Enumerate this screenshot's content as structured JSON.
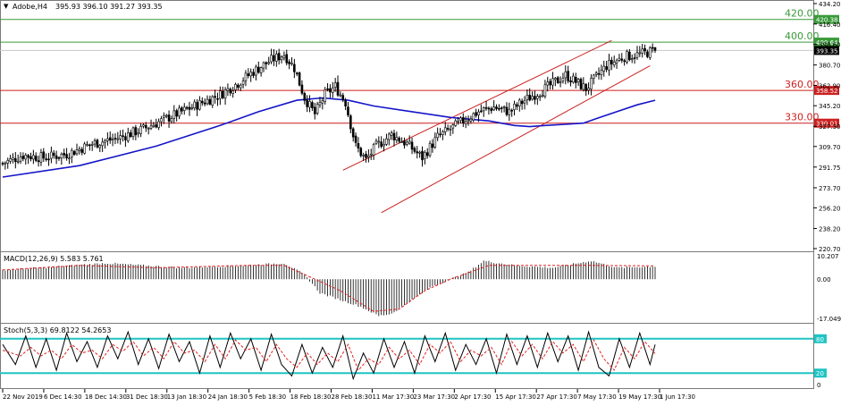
{
  "header": {
    "symbol": "Adobe,H4",
    "ohlc": "395.93 396.10 391.27 393.35"
  },
  "colors": {
    "bullish_candle": "#ffffff",
    "bearish_candle": "#000000",
    "moving_average": "#1414c8",
    "channel": "#cc1f1f",
    "resistance_level": "#3a9a3a",
    "support_level": "#cc1f1f",
    "stoch_level": "#1fc4c4",
    "signal_line": "#e02020"
  },
  "price_axis": {
    "ylim": [
      220.7,
      434.2
    ],
    "ticks": [
      "434.20",
      "416.40",
      "398.60",
      "380.70",
      "362.90",
      "345.20",
      "327.30",
      "309.70",
      "291.75",
      "273.70",
      "256.20",
      "238.20",
      "220.70"
    ],
    "current_price": "393.35"
  },
  "levels": [
    {
      "label": "420.00",
      "price": 420.38,
      "tag": "420.38",
      "color": "resistance_level"
    },
    {
      "label": "400.00",
      "price": 400.64,
      "tag": "400.64",
      "color": "resistance_level"
    },
    {
      "label": "360.00",
      "price": 358.52,
      "tag": "358.52",
      "color": "support_level"
    },
    {
      "label": "330.00",
      "price": 330.01,
      "tag": "330.01",
      "color": "support_level"
    }
  ],
  "date_labels": [
    "22 Nov 2019",
    "6 Dec 14:30",
    "18 Dec 14:30",
    "31 Dec 18:30",
    "13 Jan 18:30",
    "24 Jan 18:30",
    "5 Feb 18:30",
    "18 Feb 18:30",
    "28 Feb 18:30",
    "11 Mar 17:30",
    "23 Mar 17:30",
    "2 Apr 17:30",
    "15 Apr 17:30",
    "27 Apr 17:30",
    "7 May 17:30",
    "19 May 17:30",
    "1 Jun 17:30"
  ],
  "chart_data": [
    {
      "type": "candlestick",
      "title": "Adobe,H4",
      "ylim": [
        220.7,
        434.2
      ],
      "bars": 256,
      "price_path": {
        "x": [
          0,
          8,
          16,
          25,
          35,
          45,
          55,
          65,
          75,
          85,
          92,
          98,
          105,
          110,
          114,
          118,
          122,
          126,
          130,
          134,
          138,
          142,
          146,
          152,
          158,
          164,
          170,
          175,
          180,
          186,
          192,
          198,
          204,
          212,
          220,
          228,
          236,
          243,
          249,
          255
        ],
        "close": [
          295,
          302,
          300,
          303,
          312,
          317,
          325,
          335,
          345,
          355,
          365,
          375,
          385,
          390,
          378,
          352,
          338,
          355,
          362,
          348,
          310,
          298,
          310,
          320,
          312,
          300,
          318,
          325,
          332,
          340,
          344,
          340,
          350,
          360,
          372,
          360,
          380,
          388,
          390,
          393.35
        ]
      },
      "moving_average": {
        "x": [
          0,
          30,
          60,
          85,
          100,
          115,
          125,
          135,
          145,
          160,
          175,
          190,
          200,
          206,
          212,
          220,
          227,
          232,
          240,
          248,
          255
        ],
        "y": [
          283,
          293,
          310,
          328,
          340,
          350,
          352,
          350,
          345,
          340,
          335,
          332,
          328,
          327,
          328,
          329,
          330,
          334,
          340,
          346,
          350
        ]
      },
      "channel": {
        "upper": [
          [
            133,
            289
          ],
          [
            238,
            402
          ]
        ],
        "lower": [
          [
            148,
            252
          ],
          [
            253,
            380
          ]
        ]
      },
      "levels": [
        420.38,
        400.64,
        358.52,
        330.01
      ],
      "last": {
        "open": 395.93,
        "high": 396.1,
        "low": 391.27,
        "close": 393.35
      }
    },
    {
      "type": "bar",
      "title": "MACD(12,26,9) 5.583 5.761",
      "ylim": [
        -17.049,
        10.207
      ],
      "ticks": [
        "10.207",
        "0.00",
        "-17.049"
      ],
      "histogram_path": {
        "x": [
          0,
          15,
          40,
          70,
          95,
          110,
          118,
          124,
          132,
          140,
          147,
          152,
          160,
          168,
          175,
          182,
          188,
          200,
          215,
          230,
          240,
          255
        ],
        "y": [
          4,
          5,
          7,
          5,
          6,
          7,
          2,
          -6,
          -9,
          -12,
          -16,
          -15,
          -9,
          -3,
          0,
          3,
          8,
          6,
          5,
          8,
          5,
          5.6
        ]
      },
      "signal_path": {
        "x": [
          0,
          30,
          60,
          95,
          110,
          122,
          132,
          145,
          155,
          165,
          175,
          190,
          205,
          230,
          255
        ],
        "y": [
          4,
          6,
          5,
          6,
          6,
          0,
          -5,
          -14,
          -13,
          -5,
          0,
          6,
          6,
          6,
          5.8
        ]
      }
    },
    {
      "type": "line",
      "title": "Stoch(5,3,3) 69.8122 54.2653",
      "ylim": [
        0,
        100
      ],
      "ticks": [
        "80",
        "20",
        "0"
      ],
      "levels": [
        80,
        20
      ],
      "oscillator_path": {
        "x": [
          0,
          5,
          9,
          13,
          17,
          21,
          25,
          29,
          33,
          37,
          41,
          45,
          49,
          53,
          57,
          61,
          65,
          69,
          73,
          77,
          81,
          85,
          89,
          93,
          97,
          101,
          105,
          109,
          113,
          117,
          121,
          125,
          129,
          133,
          137,
          141,
          145,
          149,
          153,
          157,
          161,
          165,
          169,
          173,
          177,
          181,
          185,
          189,
          193,
          197,
          201,
          205,
          209,
          213,
          217,
          221,
          225,
          229,
          233,
          237,
          241,
          245,
          249,
          253,
          255
        ],
        "y": [
          70,
          35,
          85,
          30,
          80,
          25,
          90,
          40,
          75,
          30,
          85,
          45,
          92,
          35,
          80,
          28,
          88,
          40,
          75,
          20,
          85,
          30,
          90,
          45,
          80,
          25,
          88,
          35,
          15,
          70,
          20,
          65,
          30,
          85,
          10,
          55,
          20,
          80,
          30,
          75,
          20,
          85,
          40,
          90,
          25,
          70,
          35,
          80,
          20,
          88,
          35,
          85,
          30,
          90,
          40,
          85,
          25,
          92,
          30,
          15,
          80,
          30,
          90,
          35,
          70
        ]
      },
      "signal_path": {
        "x": [
          0,
          7,
          11,
          15,
          19,
          23,
          27,
          31,
          35,
          39,
          43,
          47,
          51,
          55,
          59,
          63,
          67,
          71,
          75,
          79,
          83,
          87,
          91,
          95,
          99,
          103,
          107,
          111,
          115,
          119,
          123,
          127,
          131,
          135,
          139,
          143,
          147,
          151,
          155,
          159,
          163,
          167,
          171,
          175,
          179,
          183,
          187,
          191,
          195,
          199,
          203,
          207,
          211,
          215,
          219,
          223,
          227,
          231,
          235,
          239,
          243,
          247,
          251,
          255
        ],
        "y": [
          60,
          50,
          65,
          50,
          60,
          45,
          70,
          55,
          60,
          45,
          70,
          58,
          75,
          50,
          65,
          45,
          75,
          55,
          60,
          40,
          70,
          45,
          78,
          60,
          65,
          40,
          70,
          45,
          30,
          55,
          35,
          55,
          40,
          70,
          25,
          45,
          35,
          65,
          45,
          60,
          35,
          70,
          55,
          75,
          40,
          60,
          50,
          65,
          35,
          75,
          50,
          70,
          45,
          75,
          55,
          70,
          40,
          78,
          45,
          25,
          65,
          45,
          75,
          54
        ]
      }
    }
  ]
}
